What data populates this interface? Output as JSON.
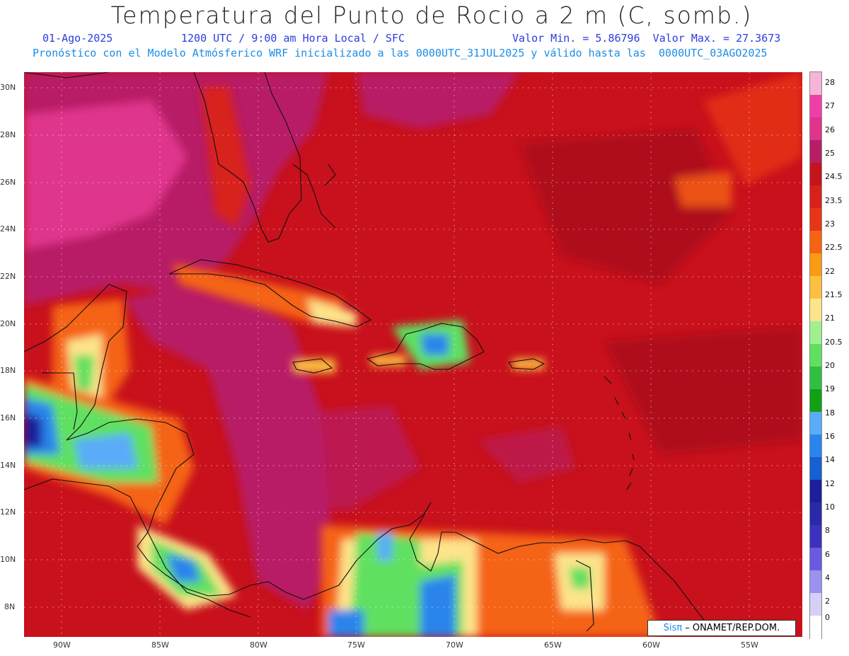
{
  "title": "Temperatura del Punto de Rocio a 2 m (C, somb.)",
  "info_line1": {
    "date": "01-Ago-2025",
    "time": "1200 UTC / 9:00 am Hora Local / SFC",
    "minmax": "Valor Min. = 5.86796  Valor Max. = 27.3673"
  },
  "info_line2": "Pronóstico con el Modelo Atmósferico WRF inicializado a las 0000UTC_31JUL2025 y válido hasta las  0000UTC_03AGO2025",
  "lat_labels": [
    "30N",
    "28N",
    "26N",
    "24N",
    "22N",
    "20N",
    "18N",
    "16N",
    "14N",
    "12N",
    "10N",
    "8N"
  ],
  "lon_labels": [
    "90W",
    "85W",
    "80W",
    "75W",
    "70W",
    "65W",
    "60W",
    "55W"
  ],
  "colorbar": {
    "labels": [
      "28",
      "27",
      "26",
      "25",
      "24.5",
      "23.5",
      "23",
      "22.5",
      "22",
      "21.5",
      "21",
      "20.5",
      "20",
      "19",
      "18",
      "16",
      "14",
      "12",
      "10",
      "8",
      "6",
      "4",
      "2",
      "0"
    ],
    "colors": [
      "#f5b5d8",
      "#f03ea8",
      "#e0348c",
      "#b81e66",
      "#c4141c",
      "#d8201c",
      "#e83418",
      "#f56414",
      "#fb9a14",
      "#fcc040",
      "#fde48a",
      "#a0f090",
      "#60e060",
      "#30c040",
      "#14a014",
      "#5aacf8",
      "#2a84ec",
      "#1460d4",
      "#1e1e9c",
      "#2a2aa8",
      "#3c30c0",
      "#6a5ae0",
      "#9c90f0",
      "#d4d0f8",
      "#ffffff"
    ]
  },
  "credit": {
    "brand": "Sisπ",
    "text": "– ONAMET/REP.DOM."
  },
  "palette": {
    "ocean_base": "#c8111c",
    "warm_pink": "#b81e66",
    "hot_pink": "#e0348c",
    "orange": "#f56414",
    "yellow": "#fde48a",
    "green": "#30c040",
    "blue": "#2a84ec",
    "navy": "#1e1e9c"
  }
}
